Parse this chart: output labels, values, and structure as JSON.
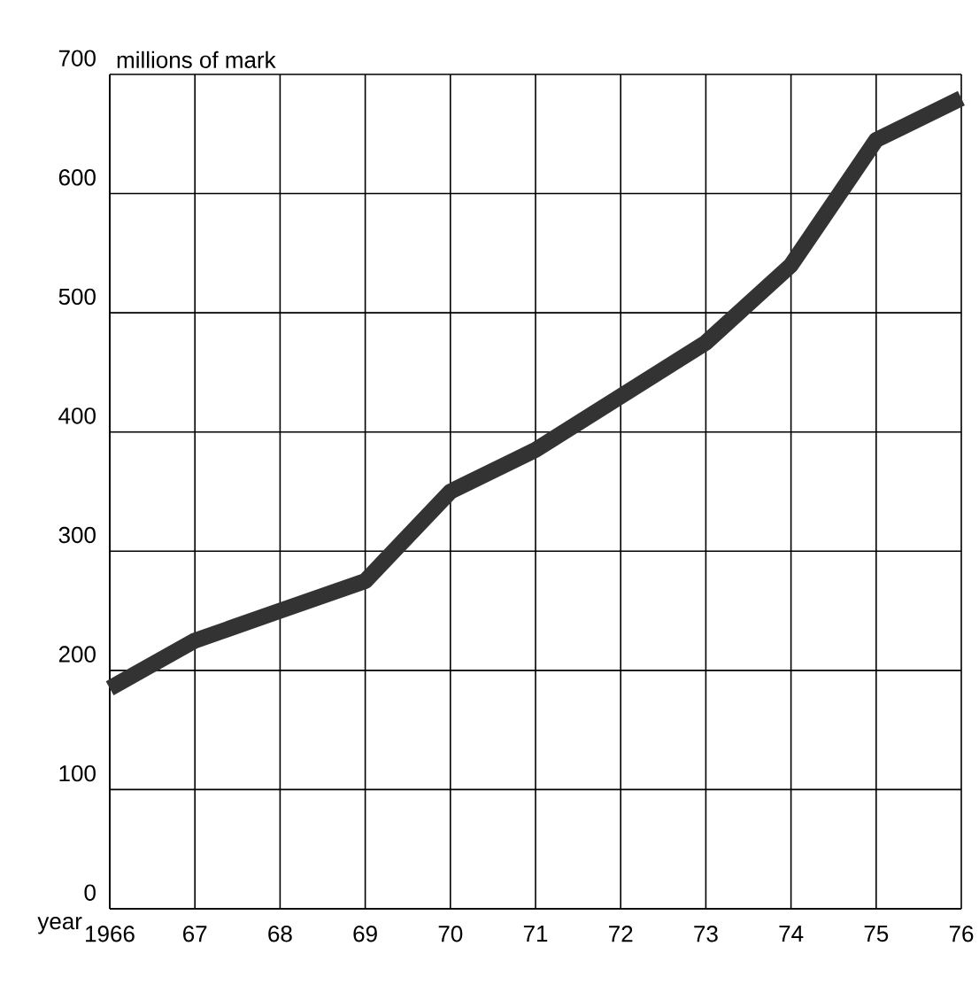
{
  "chart_data": {
    "type": "line",
    "xlabel": "year",
    "ylabel": "millions of mark",
    "x": [
      1966,
      1967,
      1968,
      1969,
      1970,
      1971,
      1972,
      1973,
      1974,
      1975,
      1976
    ],
    "values": [
      185,
      225,
      250,
      275,
      350,
      385,
      430,
      475,
      540,
      645,
      680
    ],
    "color": "#333333",
    "xlim": [
      1966,
      1976
    ],
    "xticks": [
      {
        "value": 1966,
        "label": "1966"
      },
      {
        "value": 1967,
        "label": "67"
      },
      {
        "value": 1968,
        "label": "68"
      },
      {
        "value": 1969,
        "label": "69"
      },
      {
        "value": 1970,
        "label": "70"
      },
      {
        "value": 1971,
        "label": "71"
      },
      {
        "value": 1972,
        "label": "72"
      },
      {
        "value": 1973,
        "label": "73"
      },
      {
        "value": 1974,
        "label": "74"
      },
      {
        "value": 1975,
        "label": "75"
      },
      {
        "value": 1976,
        "label": "76"
      }
    ],
    "ylim": [
      0,
      700
    ],
    "yticks": [
      0,
      100,
      200,
      300,
      400,
      500,
      600,
      700
    ],
    "grid": true
  }
}
